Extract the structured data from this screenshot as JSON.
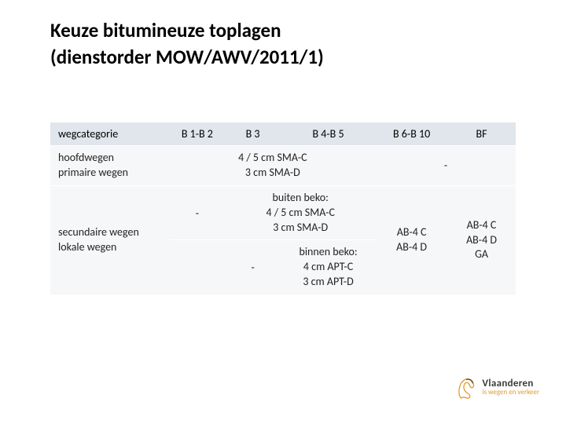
{
  "title": "Keuze bitumineuze toplagen\n(dienstorder MOW/AWV/2011/1)",
  "colors": {
    "header_bg": "#e0e6eb",
    "header_fg": "#000000",
    "body_bg": "#f5f7f9",
    "accent": "#e39a2e",
    "lion_outline": "#3b3b3b"
  },
  "table": {
    "columns": [
      "wegcategorie",
      "B 1-B 2",
      "B 3",
      "B 4-B 5",
      "B 6-B 10",
      "BF"
    ],
    "col_widths": [
      "150px",
      "70px",
      "70px",
      "120px",
      "90px",
      "86px"
    ],
    "rows": [
      {
        "label": "hoofdwegen\nprimaire wegen",
        "cells": [
          {
            "text": "4 / 5 cm SMA-C\n3 cm SMA-D",
            "span": 3,
            "align": "c"
          },
          {
            "text": "-",
            "span": 2,
            "align": "c"
          }
        ]
      },
      {
        "label": "secundaire wegen\nlokale wegen",
        "sub": [
          {
            "b1b2": "-",
            "mid_span_text": "buiten beko:\n4 / 5 cm SMA-C\n3 cm SMA-D"
          },
          {
            "b1b2": "",
            "b3": "-",
            "b4b5": "binnen beko:\n4 cm APT-C\n3 cm APT-D"
          }
        ],
        "b6b10": "AB-4 C\nAB-4 D",
        "bf": "AB-4 C\nAB-4 D\nGA"
      }
    ]
  },
  "footer": {
    "line1": "Vlaanderen",
    "line2": "is wegen en verkeer"
  }
}
